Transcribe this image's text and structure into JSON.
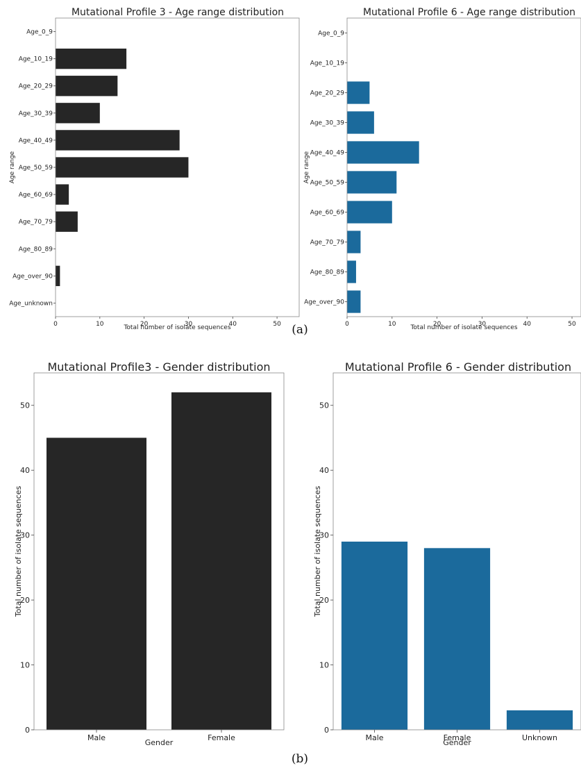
{
  "panel_labels": {
    "a": "(a)",
    "b": "(b)"
  },
  "colors": {
    "dark": "#262626",
    "blue": "#1b6a9c"
  },
  "chart_data": [
    {
      "id": "age3",
      "type": "bar",
      "orientation": "horizontal",
      "title": "Mutational Profile 3 - Age range distribution",
      "xlabel": "Total number of isolate sequences",
      "ylabel": "Age range",
      "categories": [
        "Age_0_9",
        "Age_10_19",
        "Age_20_29",
        "Age_30_39",
        "Age_40_49",
        "Age_50_59",
        "Age_60_69",
        "Age_70_79",
        "Age_80_89",
        "Age_over_90",
        "Age_unknown"
      ],
      "values": [
        0,
        16,
        14,
        10,
        28,
        30,
        3,
        5,
        0,
        1,
        0
      ],
      "xlim": [
        0,
        55
      ],
      "xticks": [
        0,
        10,
        20,
        30,
        40,
        50
      ],
      "color": "#262626"
    },
    {
      "id": "age6",
      "type": "bar",
      "orientation": "horizontal",
      "title": "Mutational Profile 6 - Age range distribution",
      "xlabel": "Total number of isolate sequences",
      "ylabel": "Age range",
      "categories": [
        "Age_0_9",
        "Age_10_19",
        "Age_20_29",
        "Age_30_39",
        "Age_40_49",
        "Age_50_59",
        "Age_60_69",
        "Age_70_79",
        "Age_80_89",
        "Age_over_90"
      ],
      "values": [
        0,
        0,
        5,
        6,
        16,
        11,
        10,
        3,
        2,
        3
      ],
      "xlim": [
        0,
        52
      ],
      "xticks": [
        0,
        10,
        20,
        30,
        40,
        50
      ],
      "color": "#1b6a9c"
    },
    {
      "id": "gen3",
      "type": "bar",
      "orientation": "vertical",
      "title": "Mutational Profile3 - Gender distribution",
      "xlabel": "Gender",
      "ylabel": "Total number of isolate sequences",
      "categories": [
        "Male",
        "Female"
      ],
      "values": [
        45,
        52
      ],
      "ylim": [
        0,
        55
      ],
      "yticks": [
        0,
        10,
        20,
        30,
        40,
        50
      ],
      "color": "#262626"
    },
    {
      "id": "gen6",
      "type": "bar",
      "orientation": "vertical",
      "title": "Mutational Profile 6 - Gender distribution",
      "xlabel": "Gender",
      "ylabel": "Total number of isolate sequences",
      "categories": [
        "Male",
        "Female",
        "Unknown"
      ],
      "values": [
        29,
        28,
        3
      ],
      "ylim": [
        0,
        55
      ],
      "yticks": [
        0,
        10,
        20,
        30,
        40,
        50
      ],
      "color": "#1b6a9c"
    }
  ]
}
